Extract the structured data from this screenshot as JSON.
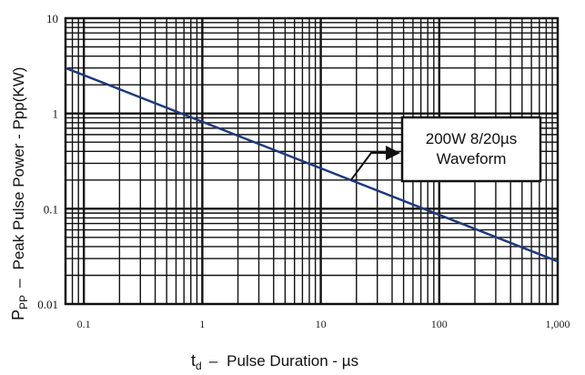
{
  "chart_data": {
    "type": "line",
    "x_scale": "log",
    "y_scale": "log",
    "xlim": [
      0.07,
      1000
    ],
    "ylim": [
      0.01,
      10
    ],
    "grid": true,
    "x_ticks": [
      {
        "value": 0.1,
        "label": "0.1"
      },
      {
        "value": 1,
        "label": "1"
      },
      {
        "value": 10,
        "label": "10"
      },
      {
        "value": 100,
        "label": "100"
      },
      {
        "value": 1000,
        "label": "1,000"
      }
    ],
    "y_ticks": [
      {
        "value": 10,
        "label": "10"
      },
      {
        "value": 1,
        "label": "1"
      },
      {
        "value": 0.1,
        "label": "0.1"
      },
      {
        "value": 0.01,
        "label": "0.01"
      }
    ],
    "xlabel": {
      "symbol": "t",
      "subscript": "d",
      "dash": "–",
      "text": "Pulse Duration - µs"
    },
    "ylabel": {
      "symbol": "P",
      "subscript": "PP",
      "dash": "–",
      "text": "Peak Pulse Power - Ppp(KW)"
    },
    "series": [
      {
        "color": "#1f3a7a",
        "points": [
          {
            "x": 0.07,
            "y": 3.0
          },
          {
            "x": 1000,
            "y": 0.028
          }
        ]
      }
    ],
    "annotation": {
      "lines": [
        "200W 8/20µs",
        "Waveform"
      ],
      "arrow_to": {
        "x": 18,
        "y": 0.2
      }
    }
  }
}
